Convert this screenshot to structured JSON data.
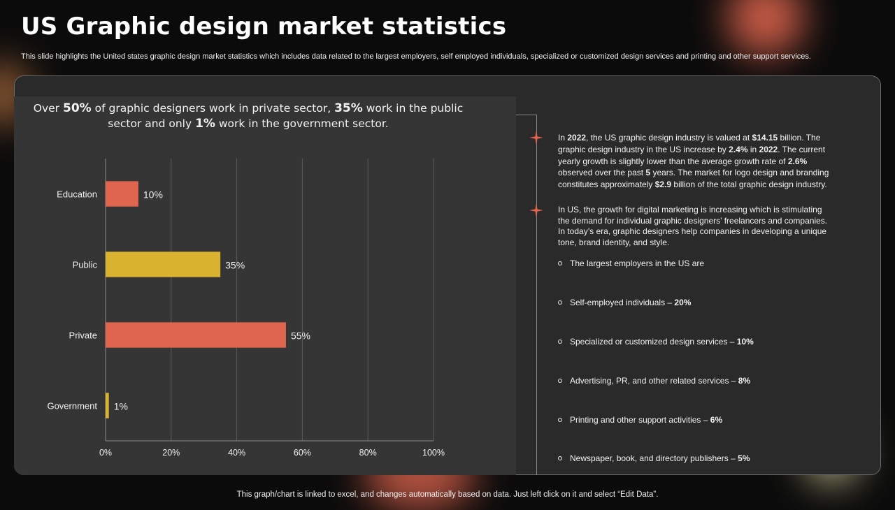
{
  "title": "US Graphic design market statistics",
  "subtitle": "This slide highlights the United states graphic design market statistics which includes data related to the largest employers, self employed individuals, specialized or customized design services and printing and other support services.",
  "headline": {
    "part1": "Over ",
    "bold1": "50%",
    "part2": " of graphic designers work in private sector, ",
    "bold2": "35%",
    "part3": " work in the public sector and only ",
    "bold3": "1%",
    "part4": " work in the government sector."
  },
  "info": {
    "p1": {
      "t1": "In ",
      "b1": "2022",
      "t2": ", the US graphic design industry is valued at ",
      "b2": "$14.15",
      "t3": " billion. The graphic design industry in the US increase by ",
      "b3": "2.4%",
      "t4": " in ",
      "b4": "2022",
      "t5": ". The current yearly growth is slightly lower than the average growth rate of ",
      "b5": "2.6%",
      "t6": " observed over the past ",
      "b6": "5",
      "t7": " years. The market for logo design and branding constitutes approximately ",
      "b7": "$2.9",
      "t8": " billion of the total graphic design industry."
    },
    "p2": "In US, the growth for digital marketing is increasing which is stimulating the demand for individual graphic designers’ freelancers and companies. In today’s era, graphic designers help companies in developing a unique tone, brand identity, and style.",
    "bullets": [
      {
        "text": "The largest employers in the US are",
        "value": ""
      },
      {
        "text": "Self-employed individuals – ",
        "value": "20%"
      },
      {
        "text": "Specialized or customized design services – ",
        "value": "10%"
      },
      {
        "text": "Advertising, PR, and other related services – ",
        "value": "8%"
      },
      {
        "text": "Printing and other support activities – ",
        "value": "6%"
      },
      {
        "text": "Newspaper, book, and directory publishers – ",
        "value": "5%"
      }
    ]
  },
  "footer": "This graph/chart is linked to excel, and changes automatically based on data. Just left click on it and select “Edit Data”.",
  "colors": {
    "coral": "#e0654e",
    "gold": "#d9b330"
  },
  "chart_data": {
    "type": "bar",
    "orientation": "horizontal",
    "categories": [
      "Education",
      "Public",
      "Private",
      "Government"
    ],
    "values": [
      10,
      35,
      55,
      1
    ],
    "value_labels": [
      "10%",
      "35%",
      "55%",
      "1%"
    ],
    "bar_colors": [
      "#e0654e",
      "#d9b330",
      "#e0654e",
      "#d9b330"
    ],
    "xlim": [
      0,
      100
    ],
    "xticks": [
      0,
      20,
      40,
      60,
      80,
      100
    ],
    "xtick_labels": [
      "0%",
      "20%",
      "40%",
      "60%",
      "80%",
      "100%"
    ],
    "grid": true,
    "title": "",
    "xlabel": "",
    "ylabel": ""
  }
}
